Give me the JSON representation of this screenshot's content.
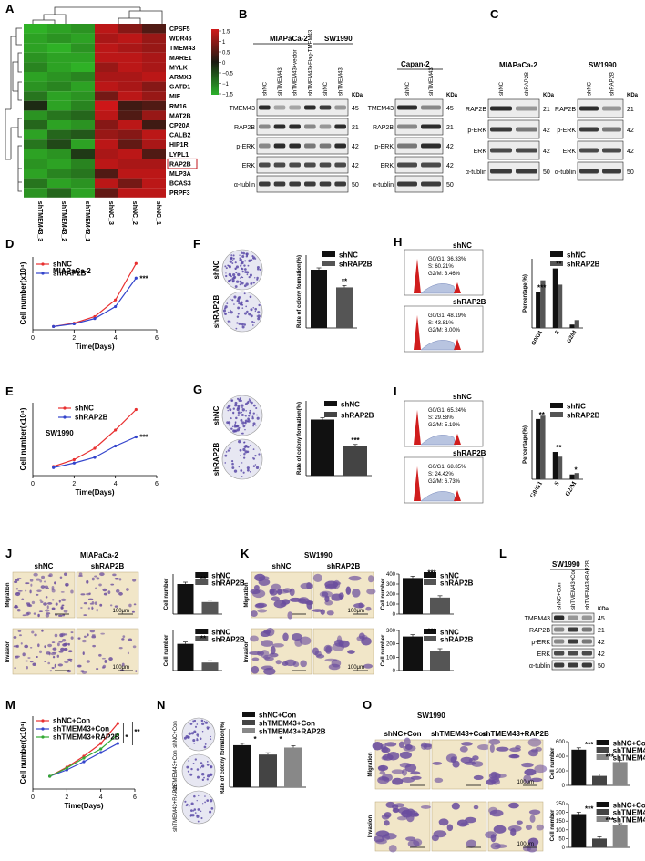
{
  "panels": {
    "A": {
      "label": "A",
      "genes": [
        "CPSF5",
        "WDR46",
        "TMEM43",
        "MARE1",
        "MYLK",
        "ARMX3",
        "GATD1",
        "MIF",
        "RM16",
        "MAT2B",
        "CP20A",
        "CALB2",
        "HIP1R",
        "LYPL1",
        "RAP2B",
        "MLP3A",
        "BCAS3",
        "PRPF3"
      ],
      "columns": [
        "shTMEM43_3",
        "shTMEM43_2",
        "shTMEM43_1",
        "shNC_3",
        "shNC_2",
        "shNC_1"
      ],
      "scale_ticks": [
        "1.5",
        "1",
        "0.5",
        "0",
        "−0.5",
        "−1",
        "−1.5"
      ],
      "highlight": "RAP2B",
      "colors": {
        "high": "#c0161b",
        "low": "#27a527",
        "mid": "#1b1b12"
      }
    },
    "B": {
      "label": "B",
      "cell_line_1": "MIAPaCa-2",
      "cell_line_2": "SW1990",
      "cell_line_3": "Capan-2",
      "lanes_1": [
        "shNC",
        "shTMEM43",
        "shTMEM43+vector",
        "shTMEM43+Flag-TMEM43",
        "shNC",
        "shTMEM43"
      ],
      "lanes_2": [
        "shNC",
        "shTMEM43"
      ],
      "proteins": [
        "TMEM43",
        "RAP2B",
        "p-ERK",
        "ERK",
        "α-tublin"
      ],
      "kda": [
        "45",
        "21",
        "42",
        "42",
        "50"
      ],
      "kda_label": "KDa"
    },
    "C": {
      "label": "C",
      "cell_line_1": "MIAPaCa-2",
      "cell_line_2": "SW1990",
      "lanes": [
        "shNC",
        "shRAP2B"
      ],
      "proteins": [
        "RAP2B",
        "p-ERK",
        "ERK",
        "α-tublin"
      ],
      "kda": [
        "21",
        "42",
        "42",
        "50"
      ],
      "kda_label": "KDa"
    },
    "D": {
      "label": "D",
      "cell_line": "MIAPaCa-2",
      "xlabel": "Time(Days)",
      "ylabel": "Cell number(x10⁴)",
      "xticks": [
        "0",
        "2",
        "4",
        "6"
      ],
      "legend": [
        "shNC",
        "shRAP2B"
      ],
      "sig": "***"
    },
    "E": {
      "label": "E",
      "cell_line": "SW1990",
      "xlabel": "Time(Days)",
      "ylabel": "Cell number(x10⁴)",
      "xticks": [
        "0",
        "2",
        "4",
        "6"
      ],
      "legend": [
        "shNC",
        "shRAP2B"
      ],
      "sig": "***"
    },
    "F": {
      "label": "F",
      "ylabel": "Rate of colony formation(%)",
      "rows": [
        "shNC",
        "shRAP2B"
      ],
      "legend": [
        "shNC",
        "shRAP2B"
      ],
      "sig": "**"
    },
    "G": {
      "label": "G",
      "ylabel": "Rate of colony formation(%)",
      "rows": [
        "shNC",
        "shRAP2B"
      ],
      "legend": [
        "shNC",
        "shRAP2B"
      ],
      "sig": "***"
    },
    "H": {
      "label": "H",
      "ylabel": "Percentage(%)",
      "hist1": {
        "title": "shNC",
        "g0": "G0/G1: 36.33%",
        "s": "S: 60.21%",
        "g2": "G2/M: 3.46%"
      },
      "hist2": {
        "title": "shRAP2B",
        "g0": "G0/G1: 48.19%",
        "s": "S: 43.81%",
        "g2": "G2/M: 8.00%"
      },
      "categories": [
        "G0/G1",
        "S",
        "G2/M"
      ],
      "legend": [
        "shNC",
        "shRAP2B"
      ],
      "sig": [
        "***",
        "**"
      ]
    },
    "I": {
      "label": "I",
      "ylabel": "Percentage(%)",
      "hist1": {
        "title": "shNC",
        "g0": "G0/G1: 65.24%",
        "s": "S: 29.58%",
        "g2": "G2/M: 5.19%"
      },
      "hist2": {
        "title": "shRAP2B",
        "g0": "G0/G1: 68.85%",
        "s": "S: 24.42%",
        "g2": "G2/M: 6.73%"
      },
      "categories": [
        "G0/G1",
        "S",
        "G2/M"
      ],
      "legend": [
        "shNC",
        "shRAP2B"
      ],
      "sig": [
        "**",
        "**",
        "*"
      ]
    },
    "J": {
      "label": "J",
      "cell_line": "MIAPaCa-2",
      "cols": [
        "shNC",
        "shRAP2B"
      ],
      "rows": [
        "Migration",
        "Invasion"
      ],
      "ylabel": "Cell number",
      "legend": [
        "shNC",
        "shRAP2B"
      ],
      "scale": "100μm",
      "sig": "**"
    },
    "K": {
      "label": "K",
      "cell_line": "SW1990",
      "cols": [
        "shNC",
        "shRAP2B"
      ],
      "rows": [
        "Migration",
        "Invasion"
      ],
      "ylabel": "Cell number",
      "legend": [
        "shNC",
        "shRAP2B"
      ],
      "scale": "100μm",
      "sig": "***"
    },
    "L": {
      "label": "L",
      "cell_line": "SW1990",
      "lanes": [
        "shNC+Con",
        "shTMEM43+Con",
        "shTMEM43+RAP2B"
      ],
      "proteins": [
        "TMEM43",
        "RAP2B",
        "p-ERK",
        "ERK",
        "α-tublin"
      ],
      "kda": [
        "45",
        "21",
        "42",
        "42",
        "50"
      ],
      "kda_label": "KDa"
    },
    "M": {
      "label": "M",
      "xlabel": "Time(Days)",
      "ylabel": "Cell number(x10⁴)",
      "xticks": [
        "0",
        "2",
        "4",
        "6"
      ],
      "legend": [
        "shNC+Con",
        "shTMEM43+Con",
        "shTMEM43+RAP2B"
      ],
      "sig": [
        "*",
        "**"
      ]
    },
    "N": {
      "label": "N",
      "ylabel": "Rate of colony formation(%)",
      "rows": [
        "shNC+Con",
        "shTMEM43+Con",
        "shTMEM43+RAP2B"
      ],
      "legend": [
        "shNC+Con",
        "shTMEM43+Con",
        "shTMEM43+RAP2B"
      ],
      "sig": "*"
    },
    "O": {
      "label": "O",
      "cell_line": "SW1990",
      "cols": [
        "shNC+Con",
        "shTMEM43+Con",
        "shTMEM43+RAP2B"
      ],
      "rows": [
        "Migration",
        "Invasion"
      ],
      "ylabel": "Cell number",
      "legend": [
        "shNC+Con",
        "shTMEM43+Con",
        "shTMEM43+RAP2B"
      ],
      "scale": "100μm",
      "sig": "***"
    }
  },
  "chart_data": [
    {
      "id": "D",
      "type": "line",
      "x": [
        1,
        2,
        3,
        4,
        5
      ],
      "series": [
        {
          "name": "shNC",
          "values": [
            5,
            10,
            20,
            45,
            100
          ]
        },
        {
          "name": "shRAP2B",
          "values": [
            5,
            9,
            17,
            35,
            78
          ]
        }
      ],
      "ylim": [
        0,
        110
      ],
      "xlim": [
        0,
        6
      ]
    },
    {
      "id": "E",
      "type": "line",
      "x": [
        1,
        2,
        3,
        4,
        5
      ],
      "series": [
        {
          "name": "shNC",
          "values": [
            4,
            7,
            12,
            20,
            29
          ]
        },
        {
          "name": "shRAP2B",
          "values": [
            3.5,
            5.5,
            8,
            13,
            17
          ]
        }
      ],
      "ylim": [
        0,
        32
      ],
      "xlim": [
        0,
        6
      ]
    },
    {
      "id": "F",
      "type": "bar",
      "categories": [
        "shNC",
        "shRAP2B"
      ],
      "values": [
        28,
        19.5
      ],
      "ylim": [
        0,
        35
      ]
    },
    {
      "id": "G",
      "type": "bar",
      "categories": [
        "shNC",
        "shRAP2B"
      ],
      "values": [
        10.5,
        5.5
      ],
      "ylim": [
        0,
        14
      ]
    },
    {
      "id": "H",
      "type": "bar",
      "categories": [
        "G0/G1",
        "S",
        "G2/M"
      ],
      "series": [
        {
          "name": "shNC",
          "values": [
            36.33,
            60.21,
            3.46
          ]
        },
        {
          "name": "shRAP2B",
          "values": [
            48.19,
            43.81,
            8.0
          ]
        }
      ],
      "ylim": [
        0,
        70
      ]
    },
    {
      "id": "I",
      "type": "bar",
      "categories": [
        "G0/G1",
        "S",
        "G2/M"
      ],
      "series": [
        {
          "name": "shNC",
          "values": [
            65.24,
            29.58,
            5.19
          ]
        },
        {
          "name": "shRAP2B",
          "values": [
            68.85,
            24.42,
            6.73
          ]
        }
      ],
      "ylim": [
        0,
        75
      ]
    },
    {
      "id": "J-mig",
      "type": "bar",
      "categories": [
        "shNC",
        "shRAP2B"
      ],
      "values": [
        45,
        18
      ],
      "ylim": [
        0,
        60
      ]
    },
    {
      "id": "J-inv",
      "type": "bar",
      "categories": [
        "shNC",
        "shRAP2B"
      ],
      "values": [
        40,
        12
      ],
      "ylim": [
        0,
        60
      ]
    },
    {
      "id": "K-mig",
      "type": "bar",
      "categories": [
        "shNC",
        "shRAP2B"
      ],
      "values": [
        360,
        165
      ],
      "ylim": [
        0,
        400
      ],
      "yticks": [
        0,
        100,
        200,
        300,
        400
      ]
    },
    {
      "id": "K-inv",
      "type": "bar",
      "categories": [
        "shNC",
        "shRAP2B"
      ],
      "values": [
        255,
        150
      ],
      "ylim": [
        0,
        300
      ],
      "yticks": [
        0,
        100,
        200,
        300
      ]
    },
    {
      "id": "M",
      "type": "line",
      "x": [
        1,
        2,
        3,
        4,
        5
      ],
      "series": [
        {
          "name": "shNC+Con",
          "values": [
            7,
            12,
            18,
            25,
            36
          ]
        },
        {
          "name": "shTMEM43+Con",
          "values": [
            7,
            10.5,
            15,
            20,
            25
          ]
        },
        {
          "name": "shTMEM43+RAP2B",
          "values": [
            7,
            11.5,
            17,
            22,
            30
          ]
        }
      ],
      "ylim": [
        0,
        40
      ],
      "xlim": [
        0,
        6
      ]
    },
    {
      "id": "N",
      "type": "bar",
      "categories": [
        "shNC+Con",
        "shTMEM43+Con",
        "shTMEM43+RAP2B"
      ],
      "values": [
        18,
        14,
        17
      ],
      "ylim": [
        0,
        25
      ]
    },
    {
      "id": "O-mig",
      "type": "bar",
      "categories": [
        "shNC+Con",
        "shTMEM43+Con",
        "shTMEM43+RAP2B"
      ],
      "values": [
        490,
        130,
        320
      ],
      "ylim": [
        0,
        600
      ],
      "yticks": [
        0,
        200,
        400,
        600
      ]
    },
    {
      "id": "O-inv",
      "type": "bar",
      "categories": [
        "shNC+Con",
        "shTMEM43+Con",
        "shTMEM43+RAP2B"
      ],
      "values": [
        190,
        50,
        125
      ],
      "ylim": [
        0,
        250
      ],
      "yticks": [
        0,
        50,
        100,
        150,
        200,
        250
      ]
    }
  ]
}
